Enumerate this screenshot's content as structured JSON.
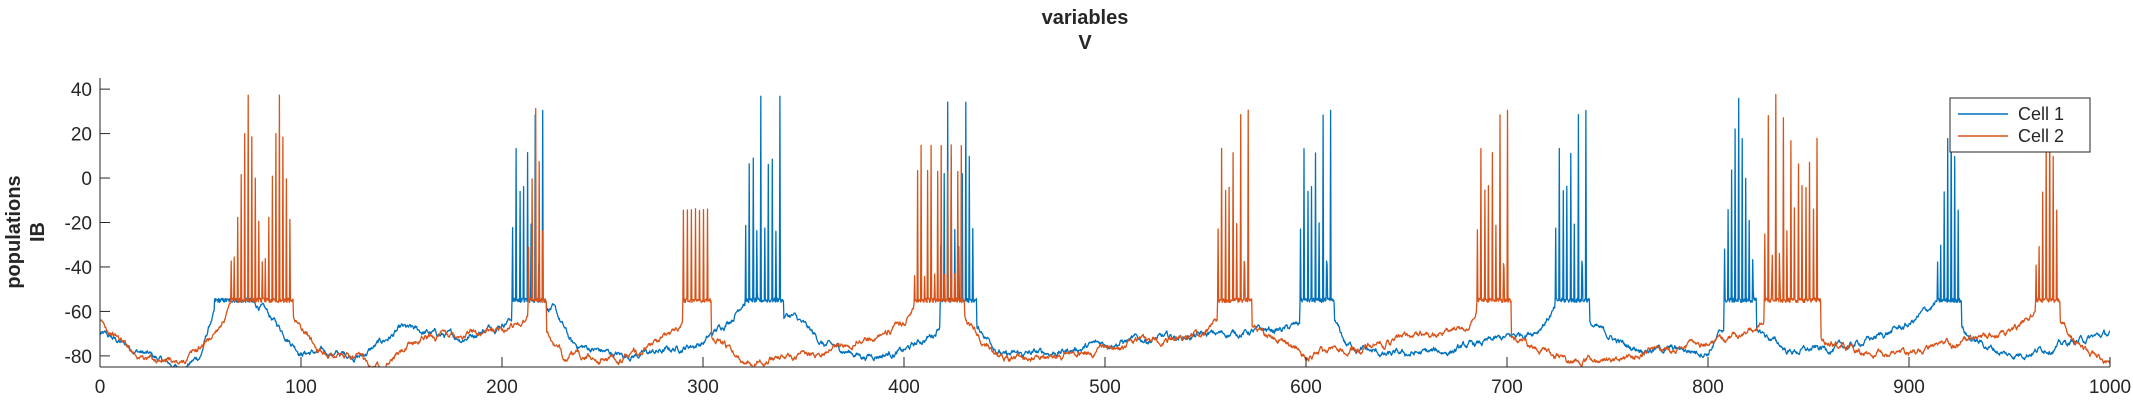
{
  "chart_data": {
    "type": "line",
    "title": [
      "variables",
      "V"
    ],
    "ylabel": [
      "populations",
      "IB"
    ],
    "xlabel": "",
    "xlim": [
      0,
      1000
    ],
    "ylim": [
      -85,
      45
    ],
    "xticks": [
      0,
      100,
      200,
      300,
      400,
      500,
      600,
      700,
      800,
      900,
      1000
    ],
    "yticks": [
      -80,
      -60,
      -40,
      -20,
      0,
      20,
      40
    ],
    "grid": false,
    "legend_position": "top-right",
    "series": [
      {
        "name": "Cell 1",
        "color": "#0072BD",
        "baseline": [
          [
            0,
            -70
          ],
          [
            20,
            -78
          ],
          [
            40,
            -86
          ],
          [
            50,
            -80
          ],
          [
            55,
            -65
          ],
          [
            60,
            -55
          ],
          [
            80,
            -58
          ],
          [
            100,
            -78
          ],
          [
            130,
            -80
          ],
          [
            150,
            -68
          ],
          [
            180,
            -72
          ],
          [
            200,
            -65
          ],
          [
            210,
            -60
          ],
          [
            225,
            -58
          ],
          [
            235,
            -75
          ],
          [
            260,
            -80
          ],
          [
            280,
            -78
          ],
          [
            300,
            -74
          ],
          [
            315,
            -62
          ],
          [
            320,
            -55
          ],
          [
            345,
            -62
          ],
          [
            360,
            -75
          ],
          [
            380,
            -80
          ],
          [
            400,
            -78
          ],
          [
            415,
            -70
          ],
          [
            420,
            -62
          ],
          [
            435,
            -65
          ],
          [
            450,
            -80
          ],
          [
            480,
            -78
          ],
          [
            500,
            -74
          ],
          [
            530,
            -72
          ],
          [
            560,
            -70
          ],
          [
            590,
            -68
          ],
          [
            600,
            -65
          ],
          [
            610,
            -58
          ],
          [
            620,
            -75
          ],
          [
            640,
            -80
          ],
          [
            670,
            -78
          ],
          [
            700,
            -72
          ],
          [
            715,
            -68
          ],
          [
            725,
            -58
          ],
          [
            745,
            -68
          ],
          [
            760,
            -76
          ],
          [
            800,
            -78
          ],
          [
            810,
            -65
          ],
          [
            825,
            -68
          ],
          [
            840,
            -78
          ],
          [
            870,
            -76
          ],
          [
            900,
            -66
          ],
          [
            915,
            -55
          ],
          [
            930,
            -72
          ],
          [
            950,
            -80
          ],
          [
            970,
            -76
          ],
          [
            1000,
            -70
          ]
        ],
        "bursts": [
          {
            "start": 57,
            "end": 75,
            "spikes": 12,
            "peak": 38
          },
          {
            "start": 205,
            "end": 222,
            "spikes": 9,
            "peak": 38
          },
          {
            "start": 321,
            "end": 340,
            "spikes": 10,
            "peak": 38
          },
          {
            "start": 418,
            "end": 436,
            "spikes": 10,
            "peak": 38
          },
          {
            "start": 597,
            "end": 614,
            "spikes": 9,
            "peak": 38
          },
          {
            "start": 724,
            "end": 741,
            "spikes": 9,
            "peak": 38
          },
          {
            "start": 808,
            "end": 824,
            "spikes": 9,
            "peak": 38
          },
          {
            "start": 914,
            "end": 926,
            "spikes": 7,
            "peak": 38
          }
        ]
      },
      {
        "name": "Cell 2",
        "color": "#D95319",
        "baseline": [
          [
            0,
            -65
          ],
          [
            20,
            -80
          ],
          [
            40,
            -84
          ],
          [
            55,
            -72
          ],
          [
            65,
            -58
          ],
          [
            95,
            -62
          ],
          [
            110,
            -78
          ],
          [
            140,
            -84
          ],
          [
            160,
            -72
          ],
          [
            200,
            -68
          ],
          [
            215,
            -62
          ],
          [
            230,
            -80
          ],
          [
            260,
            -82
          ],
          [
            285,
            -70
          ],
          [
            295,
            -58
          ],
          [
            305,
            -72
          ],
          [
            320,
            -82
          ],
          [
            360,
            -78
          ],
          [
            400,
            -66
          ],
          [
            405,
            -58
          ],
          [
            430,
            -62
          ],
          [
            445,
            -80
          ],
          [
            470,
            -80
          ],
          [
            500,
            -78
          ],
          [
            530,
            -72
          ],
          [
            550,
            -70
          ],
          [
            560,
            -60
          ],
          [
            575,
            -68
          ],
          [
            600,
            -80
          ],
          [
            630,
            -76
          ],
          [
            660,
            -70
          ],
          [
            680,
            -68
          ],
          [
            685,
            -58
          ],
          [
            705,
            -72
          ],
          [
            730,
            -82
          ],
          [
            760,
            -80
          ],
          [
            800,
            -74
          ],
          [
            825,
            -68
          ],
          [
            835,
            -58
          ],
          [
            855,
            -72
          ],
          [
            880,
            -80
          ],
          [
            920,
            -76
          ],
          [
            955,
            -68
          ],
          [
            965,
            -58
          ],
          [
            975,
            -65
          ],
          [
            990,
            -80
          ],
          [
            1000,
            -82
          ]
        ],
        "bursts": [
          {
            "start": 65,
            "end": 96,
            "spikes": 18,
            "peak": 38
          },
          {
            "start": 213,
            "end": 222,
            "spikes": 5,
            "peak": 35
          },
          {
            "start": 290,
            "end": 304,
            "spikes": 7,
            "peak": 38
          },
          {
            "start": 405,
            "end": 430,
            "spikes": 15,
            "peak": 38
          },
          {
            "start": 556,
            "end": 573,
            "spikes": 9,
            "peak": 38
          },
          {
            "start": 685,
            "end": 702,
            "spikes": 9,
            "peak": 38
          },
          {
            "start": 828,
            "end": 856,
            "spikes": 15,
            "peak": 38
          },
          {
            "start": 963,
            "end": 975,
            "spikes": 7,
            "peak": 38
          }
        ]
      }
    ]
  }
}
